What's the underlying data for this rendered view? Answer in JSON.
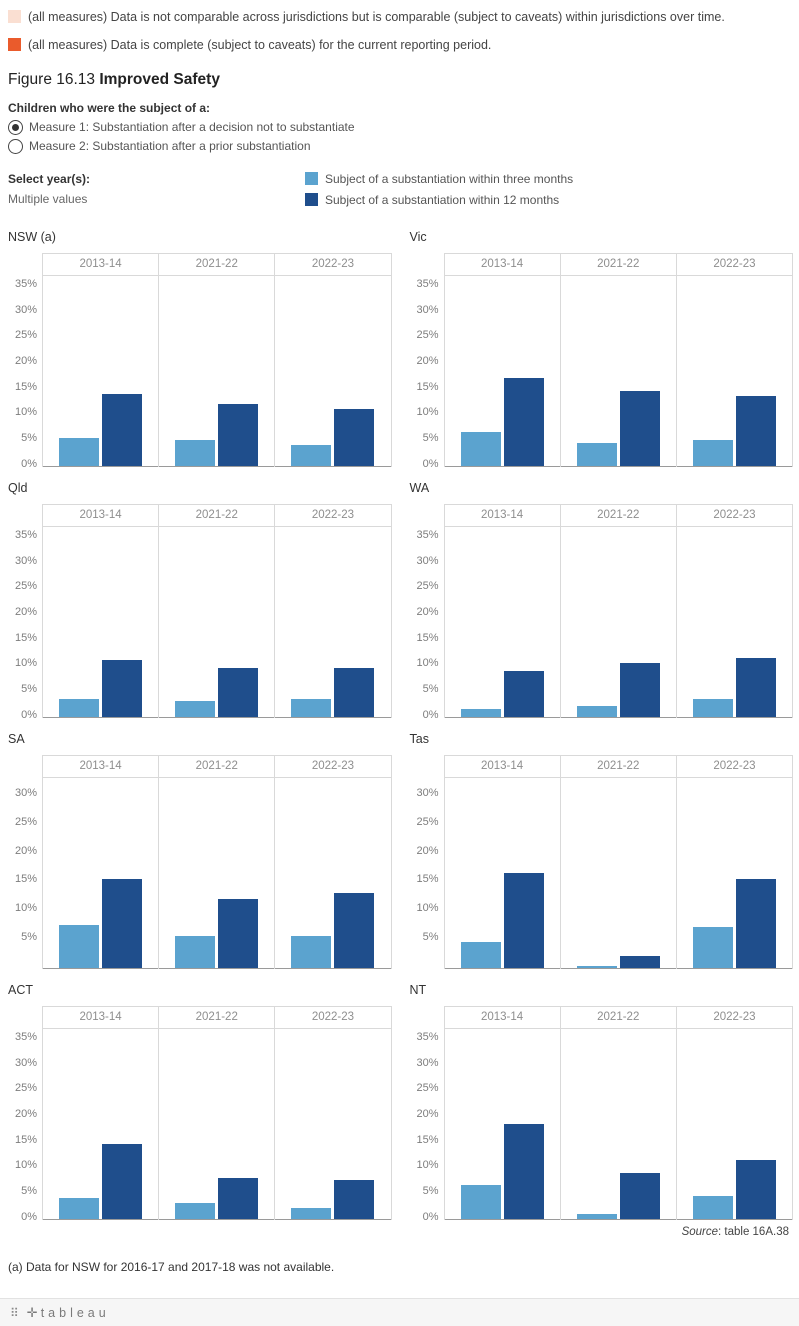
{
  "top_notes": [
    {
      "color": "#fadfd2",
      "text": "(all measures) Data is not comparable across jurisdictions but is comparable (subject to caveats) within jurisdictions over time."
    },
    {
      "color": "#ea5b2c",
      "text": "(all measures) Data is complete (subject to caveats) for the current reporting period."
    }
  ],
  "title": {
    "prefix": "Figure 16.13 ",
    "bold": "Improved Safety"
  },
  "measure_selector": {
    "label": "Children who were the subject of a:",
    "options": [
      {
        "label": "Measure 1: Substantiation after a decision not to substantiate",
        "selected": true
      },
      {
        "label": "Measure 2: Substantiation after a prior substantiation",
        "selected": false
      }
    ]
  },
  "year_selector": {
    "label": "Select year(s):",
    "value": "Multiple values"
  },
  "series_legend": [
    {
      "color": "#5ba3cf",
      "label": "Subject of a substantiation within three months"
    },
    {
      "color": "#1f4e8c",
      "label": "Subject of a substantiation within 12 months"
    }
  ],
  "source": {
    "prefix": "Source",
    "text": ": table 16A.38"
  },
  "footnote": "(a) Data for NSW for 2016-17 and 2017-18 was not available.",
  "footer": {
    "brand": "tableau"
  },
  "chart_data": {
    "type": "bar",
    "categories": [
      "2013-14",
      "2021-22",
      "2022-23"
    ],
    "series_names": [
      "Subject of a substantiation within three months",
      "Subject of a substantiation within 12 months"
    ],
    "colors": [
      "#5ba3cf",
      "#1f4e8c"
    ],
    "ylabel": "%",
    "charts": [
      {
        "title": "NSW (a)",
        "ymax": 37,
        "yticks": [
          0,
          5,
          10,
          15,
          20,
          25,
          30,
          35
        ],
        "three_months": [
          5.5,
          5,
          4
        ],
        "twelve_months": [
          14,
          12,
          11
        ]
      },
      {
        "title": "Vic",
        "ymax": 37,
        "yticks": [
          0,
          5,
          10,
          15,
          20,
          25,
          30,
          35
        ],
        "three_months": [
          6.5,
          4.5,
          5
        ],
        "twelve_months": [
          17,
          14.5,
          13.5
        ]
      },
      {
        "title": "Qld",
        "ymax": 37,
        "yticks": [
          0,
          5,
          10,
          15,
          20,
          25,
          30,
          35
        ],
        "three_months": [
          3.5,
          3,
          3.5
        ],
        "twelve_months": [
          11,
          9.5,
          9.5
        ]
      },
      {
        "title": "WA",
        "ymax": 37,
        "yticks": [
          0,
          5,
          10,
          15,
          20,
          25,
          30,
          35
        ],
        "three_months": [
          1.5,
          2,
          3.5
        ],
        "twelve_months": [
          9,
          10.5,
          11.5
        ]
      },
      {
        "title": "SA",
        "ymax": 33,
        "yticks": [
          5,
          10,
          15,
          20,
          25,
          30
        ],
        "three_months": [
          7.5,
          5.5,
          5.5
        ],
        "twelve_months": [
          15.5,
          12,
          13
        ]
      },
      {
        "title": "Tas",
        "ymax": 33,
        "yticks": [
          5,
          10,
          15,
          20,
          25,
          30
        ],
        "three_months": [
          4.5,
          0.3,
          7
        ],
        "twelve_months": [
          16.5,
          2,
          15.5
        ]
      },
      {
        "title": "ACT",
        "ymax": 37,
        "yticks": [
          0,
          5,
          10,
          15,
          20,
          25,
          30,
          35
        ],
        "three_months": [
          4,
          3,
          2
        ],
        "twelve_months": [
          14.5,
          8,
          7.5
        ]
      },
      {
        "title": "NT",
        "ymax": 37,
        "yticks": [
          0,
          5,
          10,
          15,
          20,
          25,
          30,
          35
        ],
        "three_months": [
          6.5,
          1,
          4.5
        ],
        "twelve_months": [
          18.5,
          9,
          11.5
        ]
      }
    ]
  }
}
